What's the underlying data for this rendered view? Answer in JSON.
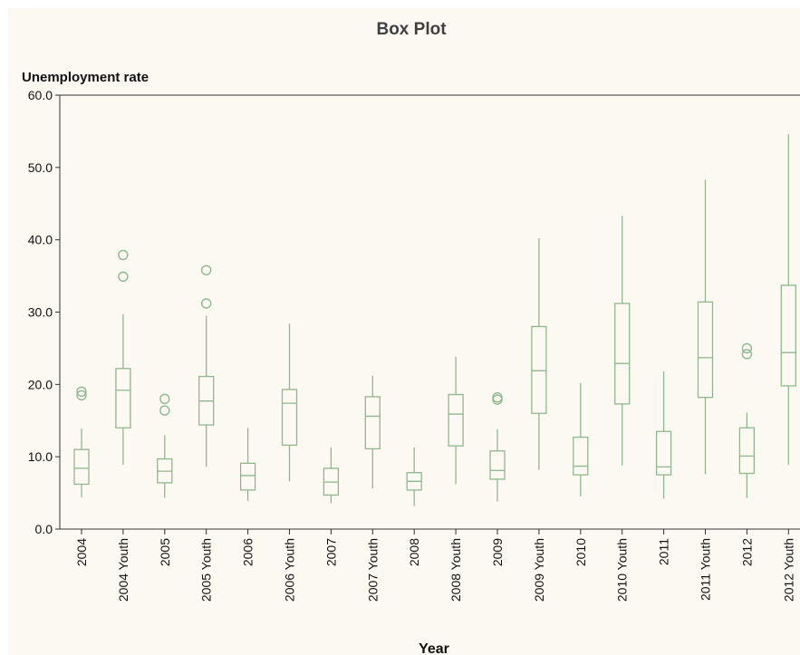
{
  "chart_data": {
    "type": "boxplot",
    "title": "Box Plot",
    "xlabel": "Year",
    "ylabel": "Unemployment rate",
    "ylim": [
      0,
      60
    ],
    "yticks": [
      "0.0",
      "10.0",
      "20.0",
      "30.0",
      "40.0",
      "50.0",
      "60.0"
    ],
    "grid": false,
    "colors": {
      "series": "#8fb88f",
      "axis": "#333333",
      "background": "#fcf9f2"
    },
    "categories": [
      "2004",
      "2004 Youth",
      "2005",
      "2005 Youth",
      "2006",
      "2006 Youth",
      "2007",
      "2007 Youth",
      "2008",
      "2008 Youth",
      "2009",
      "2009 Youth",
      "2010",
      "2010 Youth",
      "2011",
      "2011 Youth",
      "2012",
      "2012 Youth"
    ],
    "boxes": [
      {
        "category": "2004",
        "min": 4.4,
        "q1": 6.2,
        "median": 8.4,
        "q3": 11.0,
        "max": 13.9,
        "outliers": [
          18.5,
          19.0
        ]
      },
      {
        "category": "2004 Youth",
        "min": 8.9,
        "q1": 14.0,
        "median": 19.2,
        "q3": 22.2,
        "max": 29.7,
        "outliers": [
          34.9,
          37.9
        ]
      },
      {
        "category": "2005",
        "min": 4.3,
        "q1": 6.4,
        "median": 8.0,
        "q3": 9.7,
        "max": 13.0,
        "outliers": [
          16.4,
          18.0
        ]
      },
      {
        "category": "2005 Youth",
        "min": 8.6,
        "q1": 14.4,
        "median": 17.7,
        "q3": 21.1,
        "max": 29.5,
        "outliers": [
          31.2,
          35.8
        ]
      },
      {
        "category": "2006",
        "min": 3.9,
        "q1": 5.4,
        "median": 7.4,
        "q3": 9.1,
        "max": 14.0,
        "outliers": []
      },
      {
        "category": "2006 Youth",
        "min": 6.6,
        "q1": 11.6,
        "median": 17.4,
        "q3": 19.3,
        "max": 28.4,
        "outliers": []
      },
      {
        "category": "2007",
        "min": 3.6,
        "q1": 4.7,
        "median": 6.5,
        "q3": 8.4,
        "max": 11.3,
        "outliers": []
      },
      {
        "category": "2007 Youth",
        "min": 5.6,
        "q1": 11.1,
        "median": 15.6,
        "q3": 18.3,
        "max": 21.2,
        "outliers": []
      },
      {
        "category": "2008",
        "min": 3.2,
        "q1": 5.4,
        "median": 6.6,
        "q3": 7.8,
        "max": 11.3,
        "outliers": []
      },
      {
        "category": "2008 Youth",
        "min": 6.2,
        "q1": 11.5,
        "median": 15.9,
        "q3": 18.6,
        "max": 23.8,
        "outliers": []
      },
      {
        "category": "2009",
        "min": 3.8,
        "q1": 6.9,
        "median": 8.1,
        "q3": 10.8,
        "max": 13.8,
        "outliers": [
          17.9,
          18.2
        ]
      },
      {
        "category": "2009 Youth",
        "min": 8.2,
        "q1": 16.0,
        "median": 21.9,
        "q3": 28.0,
        "max": 40.2,
        "outliers": []
      },
      {
        "category": "2010",
        "min": 4.5,
        "q1": 7.5,
        "median": 8.7,
        "q3": 12.7,
        "max": 20.2,
        "outliers": []
      },
      {
        "category": "2010 Youth",
        "min": 8.8,
        "q1": 17.3,
        "median": 22.9,
        "q3": 31.2,
        "max": 43.3,
        "outliers": []
      },
      {
        "category": "2011",
        "min": 4.2,
        "q1": 7.5,
        "median": 8.6,
        "q3": 13.5,
        "max": 21.8,
        "outliers": []
      },
      {
        "category": "2011 Youth",
        "min": 7.6,
        "q1": 18.2,
        "median": 23.7,
        "q3": 31.4,
        "max": 48.3,
        "outliers": []
      },
      {
        "category": "2012",
        "min": 4.3,
        "q1": 7.7,
        "median": 10.1,
        "q3": 14.0,
        "max": 16.1,
        "outliers": [
          24.2,
          25.0
        ]
      },
      {
        "category": "2012 Youth",
        "min": 8.9,
        "q1": 19.8,
        "median": 24.4,
        "q3": 33.7,
        "max": 54.6,
        "outliers": []
      }
    ]
  }
}
